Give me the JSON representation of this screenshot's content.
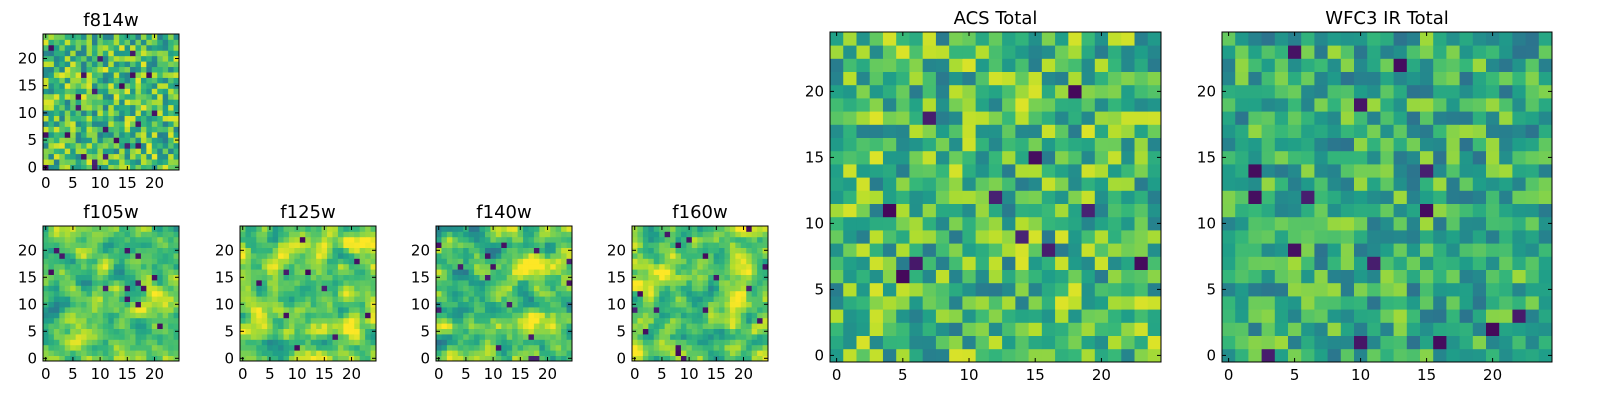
{
  "chart_data": [
    {
      "type": "heatmap",
      "title": "f814w",
      "grid_size": [
        25,
        25
      ],
      "colormap": "viridis",
      "seed": 814,
      "base_level": 0.7,
      "spread": 0.17,
      "smooth": 0,
      "dark_probability": 0.03,
      "xticks": [
        0,
        5,
        10,
        15,
        20
      ],
      "yticks": [
        0,
        5,
        10,
        15,
        20
      ],
      "xlim": [
        -0.5,
        24.5
      ],
      "ylim": [
        -0.5,
        24.5
      ]
    },
    {
      "type": "heatmap",
      "title": "f105w",
      "grid_size": [
        25,
        25
      ],
      "colormap": "viridis",
      "seed": 105,
      "base_level": 0.74,
      "spread": 0.2,
      "smooth": 1,
      "dark_probability": 0.018,
      "xticks": [
        0,
        5,
        10,
        15,
        20
      ],
      "yticks": [
        0,
        5,
        10,
        15,
        20
      ],
      "xlim": [
        -0.5,
        24.5
      ],
      "ylim": [
        -0.5,
        24.5
      ]
    },
    {
      "type": "heatmap",
      "title": "f125w",
      "grid_size": [
        25,
        25
      ],
      "colormap": "viridis",
      "seed": 125,
      "base_level": 0.78,
      "spread": 0.2,
      "smooth": 1,
      "dark_probability": 0.015,
      "xticks": [
        0,
        5,
        10,
        15,
        20
      ],
      "yticks": [
        0,
        5,
        10,
        15,
        20
      ],
      "xlim": [
        -0.5,
        24.5
      ],
      "ylim": [
        -0.5,
        24.5
      ]
    },
    {
      "type": "heatmap",
      "title": "f140w",
      "grid_size": [
        25,
        25
      ],
      "colormap": "viridis",
      "seed": 140,
      "base_level": 0.74,
      "spread": 0.22,
      "smooth": 1,
      "dark_probability": 0.02,
      "xticks": [
        0,
        5,
        10,
        15,
        20
      ],
      "yticks": [
        0,
        5,
        10,
        15,
        20
      ],
      "xlim": [
        -0.5,
        24.5
      ],
      "ylim": [
        -0.5,
        24.5
      ]
    },
    {
      "type": "heatmap",
      "title": "f160w",
      "grid_size": [
        25,
        25
      ],
      "colormap": "viridis",
      "seed": 160,
      "base_level": 0.76,
      "spread": 0.2,
      "smooth": 1,
      "dark_probability": 0.02,
      "xticks": [
        0,
        5,
        10,
        15,
        20
      ],
      "yticks": [
        0,
        5,
        10,
        15,
        20
      ],
      "xlim": [
        -0.5,
        24.5
      ],
      "ylim": [
        -0.5,
        24.5
      ]
    },
    {
      "type": "heatmap",
      "title": "ACS Total",
      "grid_size": [
        25,
        25
      ],
      "colormap": "viridis",
      "seed": 7,
      "base_level": 0.68,
      "spread": 0.17,
      "smooth": 0,
      "dark_probability": 0.018,
      "xticks": [
        0,
        5,
        10,
        15,
        20
      ],
      "yticks": [
        0,
        5,
        10,
        15,
        20
      ],
      "xlim": [
        -0.5,
        24.5
      ],
      "ylim": [
        -0.5,
        24.5
      ]
    },
    {
      "type": "heatmap",
      "title": "WFC3 IR Total",
      "grid_size": [
        25,
        25
      ],
      "colormap": "viridis",
      "seed": 3,
      "base_level": 0.62,
      "spread": 0.15,
      "smooth": 0,
      "dark_probability": 0.016,
      "xticks": [
        0,
        5,
        10,
        15,
        20
      ],
      "yticks": [
        0,
        5,
        10,
        15,
        20
      ],
      "xlim": [
        -0.5,
        24.5
      ],
      "ylim": [
        -0.5,
        24.5
      ]
    }
  ]
}
